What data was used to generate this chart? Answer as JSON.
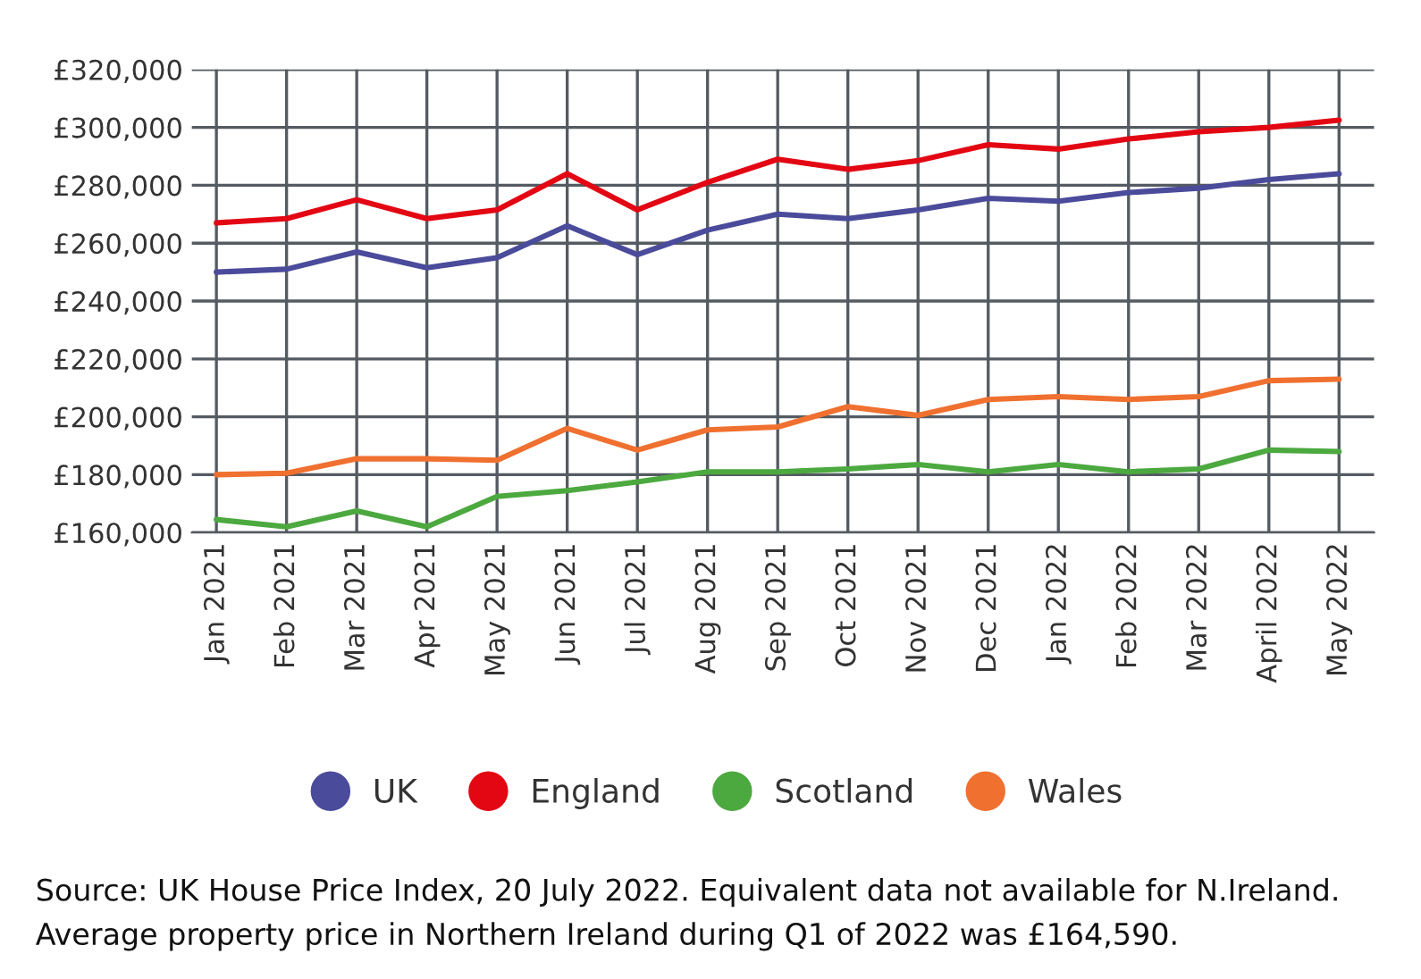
{
  "chart_data": {
    "type": "line",
    "categories": [
      "Jan 2021",
      "Feb 2021",
      "Mar 2021",
      "Apr 2021",
      "May 2021",
      "Jun 2021",
      "Jul 2021",
      "Aug 2021",
      "Sep 2021",
      "Oct 2021",
      "Nov 2021",
      "Dec 2021",
      "Jan 2022",
      "Feb 2022",
      "Mar 2022",
      "April 2022",
      "May 2022"
    ],
    "series": [
      {
        "name": "UK",
        "color": "#4b4b9b",
        "values": [
          250000,
          251000,
          257000,
          251500,
          255000,
          266000,
          256000,
          264500,
          270000,
          268500,
          271500,
          275500,
          274500,
          277500,
          279000,
          282000,
          284000
        ]
      },
      {
        "name": "England",
        "color": "#e30613",
        "values": [
          267000,
          268500,
          275000,
          268500,
          271500,
          284000,
          271500,
          281000,
          289000,
          285500,
          288500,
          294000,
          292500,
          296000,
          298500,
          300000,
          302500
        ]
      },
      {
        "name": "Scotland",
        "color": "#4ca93f",
        "values": [
          164500,
          162000,
          167500,
          162000,
          172500,
          174500,
          177500,
          181000,
          181000,
          182000,
          183500,
          181000,
          183500,
          181000,
          182000,
          188500,
          188000
        ]
      },
      {
        "name": "Wales",
        "color": "#f07030",
        "values": [
          180000,
          180500,
          185500,
          185500,
          185000,
          196000,
          188500,
          195500,
          196500,
          203500,
          200500,
          206000,
          207000,
          206000,
          207000,
          212500,
          213000
        ]
      }
    ],
    "ylim": [
      160000,
      320000
    ],
    "yticks": [
      {
        "value": 160000,
        "label": "£160,000"
      },
      {
        "value": 180000,
        "label": "£180,000"
      },
      {
        "value": 200000,
        "label": "£200,000"
      },
      {
        "value": 220000,
        "label": "£220,000"
      },
      {
        "value": 240000,
        "label": "£240,000"
      },
      {
        "value": 260000,
        "label": "£260,000"
      },
      {
        "value": 280000,
        "label": "£280,000"
      },
      {
        "value": 300000,
        "label": "£300,000"
      },
      {
        "value": 320000,
        "label": "£320,000"
      }
    ],
    "grid": true,
    "legend": "bottom",
    "marker": "none",
    "line_style": "solid",
    "annotations": [
      "Source: UK House Price Index, 20 July 2022. Equivalent data not available for N.Ireland.",
      "Average property price in Northern Ireland during Q1 of 2022 was £164,590."
    ]
  }
}
